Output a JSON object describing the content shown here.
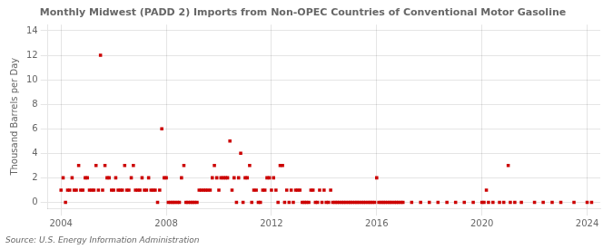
{
  "chart_data": {
    "type": "scatter",
    "title": "Monthly Midwest (PADD 2) Imports from Non-OPEC Countries of Conventional Motor Gasoline",
    "ylabel": "Thousand Barrels per Day",
    "annotation": "Source: U.S. Energy Information Administration",
    "color": "#cc0000",
    "marker": "square",
    "grid": true,
    "xlim": [
      2003.5,
      2024.5
    ],
    "ylim": [
      -0.5,
      14.5
    ],
    "xticks": [
      2004,
      2008,
      2012,
      2016,
      2020,
      2024
    ],
    "yticks": [
      0,
      2,
      4,
      6,
      8,
      10,
      12,
      14
    ],
    "x": [
      2004.0,
      2004.08,
      2004.17,
      2004.25,
      2004.33,
      2004.42,
      2004.5,
      2004.58,
      2004.67,
      2004.75,
      2004.83,
      2004.92,
      2005.0,
      2005.08,
      2005.17,
      2005.25,
      2005.33,
      2005.42,
      2005.5,
      2005.58,
      2005.67,
      2005.75,
      2005.83,
      2005.92,
      2006.0,
      2006.08,
      2006.17,
      2006.25,
      2006.33,
      2006.42,
      2006.5,
      2006.58,
      2006.67,
      2006.75,
      2006.83,
      2006.92,
      2007.0,
      2007.08,
      2007.17,
      2007.25,
      2007.33,
      2007.42,
      2007.5,
      2007.58,
      2007.67,
      2007.75,
      2007.83,
      2007.92,
      2008.0,
      2008.08,
      2008.17,
      2008.25,
      2008.33,
      2008.42,
      2008.5,
      2008.58,
      2008.67,
      2008.75,
      2008.83,
      2008.92,
      2009.0,
      2009.08,
      2009.17,
      2009.25,
      2009.33,
      2009.42,
      2009.5,
      2009.58,
      2009.67,
      2009.75,
      2009.83,
      2009.92,
      2010.0,
      2010.08,
      2010.17,
      2010.25,
      2010.33,
      2010.42,
      2010.5,
      2010.58,
      2010.67,
      2010.75,
      2010.83,
      2010.92,
      2011.0,
      2011.08,
      2011.17,
      2011.25,
      2011.33,
      2011.42,
      2011.5,
      2011.58,
      2011.67,
      2011.75,
      2011.83,
      2011.92,
      2012.0,
      2012.08,
      2012.17,
      2012.25,
      2012.33,
      2012.42,
      2012.5,
      2012.58,
      2012.67,
      2012.75,
      2012.83,
      2012.92,
      2013.0,
      2013.08,
      2013.17,
      2013.25,
      2013.33,
      2013.42,
      2013.5,
      2013.58,
      2013.67,
      2013.75,
      2013.83,
      2013.92,
      2014.0,
      2014.08,
      2014.17,
      2014.25,
      2014.33,
      2014.42,
      2014.5,
      2014.58,
      2014.67,
      2014.75,
      2014.83,
      2014.92,
      2015.0,
      2015.08,
      2015.17,
      2015.25,
      2015.33,
      2015.42,
      2015.5,
      2015.58,
      2015.67,
      2015.75,
      2015.83,
      2015.92,
      2016.0,
      2016.08,
      2016.17,
      2016.25,
      2016.33,
      2016.42,
      2016.5,
      2016.58,
      2016.67,
      2016.75,
      2016.83,
      2016.92,
      2017.0,
      2017.33,
      2017.67,
      2018.0,
      2018.33,
      2018.67,
      2019.0,
      2019.33,
      2019.67,
      2020.0,
      2020.08,
      2020.17,
      2020.25,
      2020.42,
      2020.67,
      2020.83,
      2021.0,
      2021.08,
      2021.25,
      2021.5,
      2022.0,
      2022.33,
      2022.67,
      2023.0,
      2023.5,
      2024.0,
      2024.17
    ],
    "values": [
      1.0,
      2.0,
      0.0,
      1.0,
      1.0,
      2.0,
      1.0,
      1.0,
      3.0,
      1.0,
      1.0,
      2.0,
      2.0,
      1.0,
      1.0,
      1.0,
      3.0,
      1.0,
      12.0,
      1.0,
      3.0,
      2.0,
      2.0,
      1.0,
      1.0,
      2.0,
      1.0,
      1.0,
      1.0,
      3.0,
      1.0,
      1.0,
      2.0,
      3.0,
      1.0,
      1.0,
      1.0,
      2.0,
      1.0,
      1.0,
      2.0,
      1.0,
      1.0,
      1.0,
      0.0,
      1.0,
      6.0,
      2.0,
      2.0,
      0.0,
      0.0,
      0.0,
      0.0,
      0.0,
      0.0,
      2.0,
      3.0,
      0.0,
      0.0,
      0.0,
      0.0,
      0.0,
      0.0,
      1.0,
      1.0,
      1.0,
      1.0,
      1.0,
      1.0,
      2.0,
      3.0,
      2.0,
      1.0,
      2.0,
      2.0,
      2.0,
      2.0,
      5.0,
      1.0,
      2.0,
      0.0,
      2.0,
      4.0,
      0.0,
      2.0,
      2.0,
      3.0,
      0.0,
      1.0,
      1.0,
      0.0,
      0.0,
      1.0,
      1.0,
      2.0,
      2.0,
      1.0,
      2.0,
      1.0,
      0.0,
      3.0,
      3.0,
      0.0,
      1.0,
      0.0,
      1.0,
      0.0,
      1.0,
      1.0,
      1.0,
      0.0,
      0.0,
      0.0,
      0.0,
      1.0,
      1.0,
      0.0,
      0.0,
      1.0,
      0.0,
      1.0,
      0.0,
      0.0,
      1.0,
      0.0,
      0.0,
      0.0,
      0.0,
      0.0,
      0.0,
      0.0,
      0.0,
      0.0,
      0.0,
      0.0,
      0.0,
      0.0,
      0.0,
      0.0,
      0.0,
      0.0,
      0.0,
      0.0,
      0.0,
      2.0,
      0.0,
      0.0,
      0.0,
      0.0,
      0.0,
      0.0,
      0.0,
      0.0,
      0.0,
      0.0,
      0.0,
      0.0,
      0.0,
      0.0,
      0.0,
      0.0,
      0.0,
      0.0,
      0.0,
      0.0,
      0.0,
      0.0,
      1.0,
      0.0,
      0.0,
      0.0,
      0.0,
      3.0,
      0.0,
      0.0,
      0.0,
      0.0,
      0.0,
      0.0,
      0.0,
      0.0,
      0.0,
      0.0
    ]
  }
}
